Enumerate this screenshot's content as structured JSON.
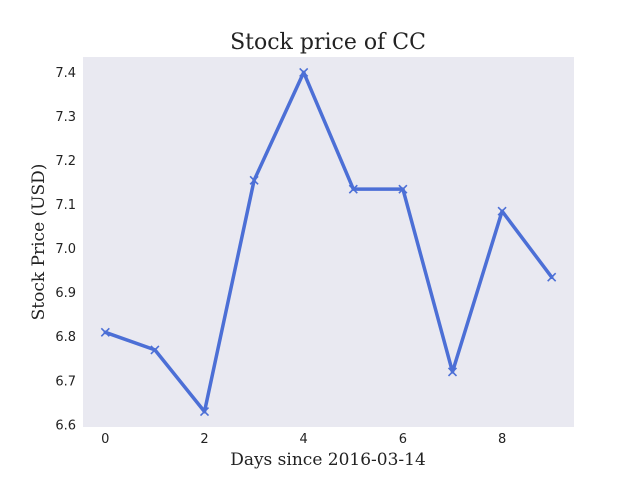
{
  "chart_data": {
    "type": "line",
    "title": "Stock price of CC",
    "xlabel": "Days since 2016-03-14",
    "ylabel": "Stock Price (USD)",
    "x": [
      0,
      1,
      2,
      3,
      4,
      5,
      6,
      7,
      8,
      9
    ],
    "series": [
      {
        "values": [
          6.81,
          6.77,
          6.63,
          7.155,
          7.4,
          7.135,
          7.135,
          6.72,
          7.085,
          6.935
        ],
        "color": "#4c6fd6",
        "marker": "x"
      }
    ],
    "xlim": [
      -0.45,
      9.45
    ],
    "ylim": [
      6.595,
      7.435
    ],
    "x_ticks": [
      0,
      2,
      4,
      6,
      8
    ],
    "y_ticks": [
      6.6,
      6.7,
      6.8,
      6.9,
      7.0,
      7.1,
      7.2,
      7.3,
      7.4
    ],
    "y_tick_labels": [
      "6.6",
      "6.7",
      "6.8",
      "6.9",
      "7.0",
      "7.1",
      "7.2",
      "7.3",
      "7.4"
    ],
    "grid": false,
    "plot_background": "#e9e9f1"
  }
}
